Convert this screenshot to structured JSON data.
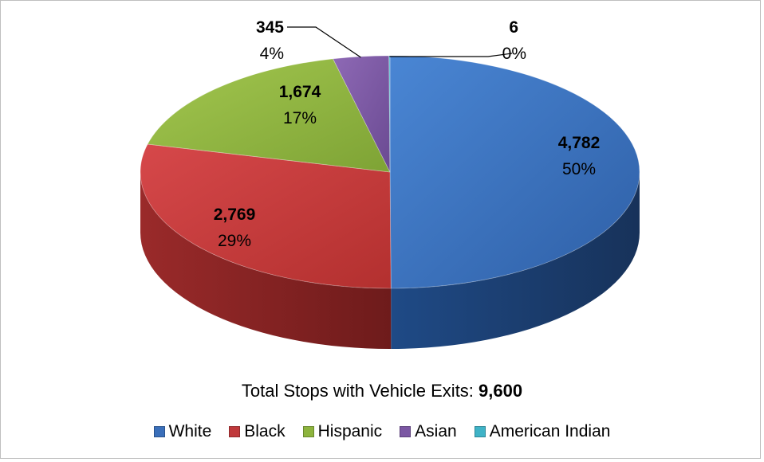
{
  "chart_data": {
    "type": "pie",
    "categories": [
      "White",
      "Black",
      "Hispanic",
      "Asian",
      "American Indian"
    ],
    "values": [
      4782,
      2769,
      1674,
      345,
      6
    ],
    "value_labels": [
      "4,782",
      "2,769",
      "1,674",
      "345",
      "6"
    ],
    "percent_labels": [
      "50%",
      "29%",
      "17%",
      "4%",
      "0%"
    ],
    "colors": [
      "#3a6fba",
      "#c0393b",
      "#8db43d",
      "#7b57a3",
      "#3fb3c7"
    ],
    "legend_position": "bottom"
  },
  "total": {
    "label": "Total Stops with Vehicle Exits: ",
    "value": "9,600"
  }
}
